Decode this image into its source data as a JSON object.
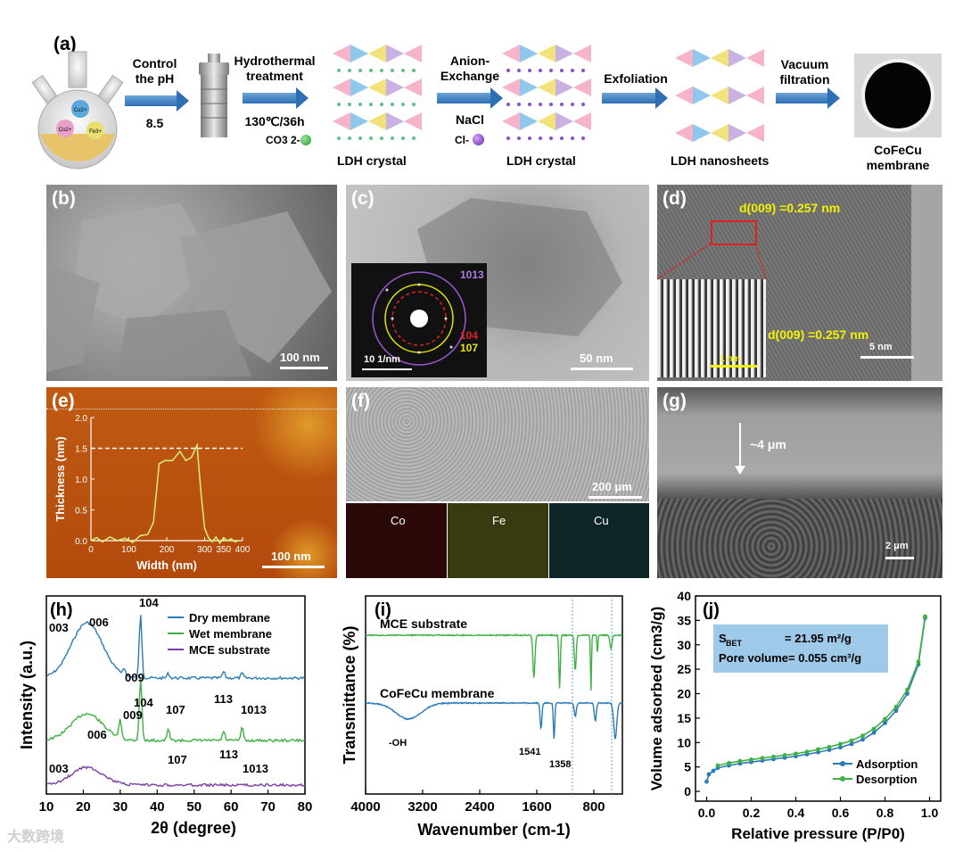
{
  "panel_a": {
    "label": "(a)",
    "flask_ions": [
      "Cu2+",
      "Co2+",
      "Fe3+"
    ],
    "step1": {
      "line1": "Control",
      "line2": "the pH",
      "value": "8.5"
    },
    "step2": {
      "line1": "Hydrothermal",
      "line2": "treatment",
      "value": "130℃/36h"
    },
    "step3": {
      "line1": "Anion-",
      "line2": "Exchange",
      "value": "NaCl"
    },
    "step4": {
      "line1": "Exfoliation"
    },
    "step5": {
      "line1": "Vacuum",
      "line2": "filtration"
    },
    "crystal1": "LDH crystal",
    "crystal2": "LDH crystal",
    "nanosheets": "LDH nanosheets",
    "ion1": "CO3 2-",
    "ion2": "Cl-",
    "membrane_line1": "CoFeCu",
    "membrane_line2": "membrane"
  },
  "panel_b": {
    "label": "(b)",
    "scale": "100 nm"
  },
  "panel_c": {
    "label": "(c)",
    "scale": "50 nm",
    "saed_scale": "10 1/nm",
    "ring_labels": [
      "1013",
      "104",
      "107"
    ],
    "ring_colors": [
      "#9b59d0",
      "#e02020",
      "#e6e600"
    ]
  },
  "panel_d": {
    "label": "(d)",
    "d1": "d(009) =0.257 nm",
    "d2": "d(009) =0.257 nm",
    "scale": "5 nm",
    "inset_scale": "1 nm"
  },
  "panel_e": {
    "label": "(e)",
    "scale": "100 nm",
    "chart_data": {
      "type": "line",
      "xlabel": "Width (nm)",
      "ylabel": "Thickness (nm)",
      "xlim": [
        0,
        400
      ],
      "ylim": [
        0,
        2.0
      ],
      "xticks": [
        "0",
        "100",
        "200",
        "300",
        "350",
        "400"
      ],
      "yticks": [
        "0.0",
        "0.5",
        "1.0",
        "1.5",
        "2.0"
      ],
      "reference_line": 1.5,
      "x": [
        0,
        15,
        30,
        50,
        70,
        90,
        110,
        130,
        150,
        165,
        180,
        195,
        215,
        235,
        250,
        265,
        280,
        290,
        300,
        310,
        320,
        330,
        340,
        350,
        360,
        370,
        380,
        390
      ],
      "y": [
        0.0,
        0.05,
        -0.02,
        0.06,
        0.0,
        0.04,
        -0.03,
        0.08,
        0.1,
        0.3,
        1.25,
        1.3,
        1.3,
        1.45,
        1.3,
        1.35,
        1.55,
        0.8,
        0.2,
        0.05,
        -0.02,
        0.06,
        -0.04,
        0.05,
        0.0,
        0.03,
        -0.02,
        0.0
      ]
    }
  },
  "panel_f": {
    "label": "(f)",
    "scale": "200 μm",
    "maps": [
      "Co",
      "Fe",
      "Cu"
    ]
  },
  "panel_g": {
    "label": "(g)",
    "thickness": "~4 μm",
    "scale": "2 μm"
  },
  "panel_h": {
    "label": "(h)",
    "chart_data": {
      "type": "line",
      "xlabel": "2θ (degree)",
      "ylabel": "Intensity (a.u.)",
      "xlim": [
        10,
        80
      ],
      "xticks": [
        "10",
        "20",
        "30",
        "40",
        "50",
        "60",
        "70",
        "80"
      ],
      "series": [
        {
          "name": "Dry membrane",
          "color": "#2b7bba",
          "peaks": [
            "003",
            "006",
            "009",
            "104",
            "107",
            "113",
            "1013"
          ]
        },
        {
          "name": "Wet membrane",
          "color": "#3fb143",
          "peaks": [
            "003",
            "006",
            "009",
            "104",
            "107",
            "113",
            "1013"
          ]
        },
        {
          "name": "MCE substrate",
          "color": "#7b3fa8"
        }
      ]
    }
  },
  "panel_i": {
    "label": "(i)",
    "chart_data": {
      "type": "line",
      "xlabel": "Wavenumber (cm-1)",
      "ylabel": "Transmittance (%)",
      "xlim": [
        4000,
        400
      ],
      "xticks": [
        "4000",
        "3200",
        "2400",
        "1600",
        "800"
      ],
      "series": [
        {
          "name": "MCE substrate",
          "color": "#3fb143"
        },
        {
          "name": "CoFeCu membrane",
          "color": "#2b7bba"
        }
      ],
      "annotations": [
        "-OH",
        "1541",
        "1358"
      ]
    }
  },
  "panel_j": {
    "label": "(j)",
    "sbet_label": "S",
    "sbet_sub": "BET",
    "sbet_value": "= 21.95 m²/g",
    "pore": "Pore volume= 0.055 cm³/g",
    "chart_data": {
      "type": "line",
      "xlabel": "Relative pressure (P/P0)",
      "ylabel": "Volume adsorbed (cm3/g)",
      "xlim": [
        0,
        1.0
      ],
      "ylim": [
        0,
        40
      ],
      "xticks": [
        "0.0",
        "0.2",
        "0.4",
        "0.6",
        "0.8",
        "1.0"
      ],
      "yticks": [
        "0",
        "5",
        "10",
        "15",
        "20",
        "25",
        "30",
        "35",
        "40"
      ],
      "series": [
        {
          "name": "Adsorption",
          "color": "#2b7bba",
          "x": [
            0.0,
            0.01,
            0.03,
            0.05,
            0.1,
            0.15,
            0.2,
            0.25,
            0.3,
            0.35,
            0.4,
            0.45,
            0.5,
            0.55,
            0.6,
            0.65,
            0.7,
            0.75,
            0.8,
            0.85,
            0.9,
            0.95,
            0.98
          ],
          "y": [
            2.0,
            3.5,
            4.2,
            4.8,
            5.3,
            5.7,
            6.0,
            6.3,
            6.6,
            6.9,
            7.2,
            7.6,
            8.0,
            8.5,
            9.0,
            9.7,
            10.6,
            12.0,
            14.0,
            16.5,
            20.0,
            26.0,
            35.5
          ]
        },
        {
          "name": "Desorption",
          "color": "#3fb143",
          "x": [
            0.05,
            0.1,
            0.15,
            0.2,
            0.25,
            0.3,
            0.35,
            0.4,
            0.45,
            0.5,
            0.55,
            0.6,
            0.65,
            0.7,
            0.75,
            0.8,
            0.85,
            0.9,
            0.95,
            0.98
          ],
          "y": [
            5.3,
            5.8,
            6.2,
            6.5,
            6.8,
            7.1,
            7.4,
            7.7,
            8.1,
            8.6,
            9.1,
            9.7,
            10.4,
            11.4,
            12.8,
            14.8,
            17.3,
            20.8,
            26.5,
            35.8
          ]
        }
      ]
    }
  },
  "watermark": "大数跨境"
}
